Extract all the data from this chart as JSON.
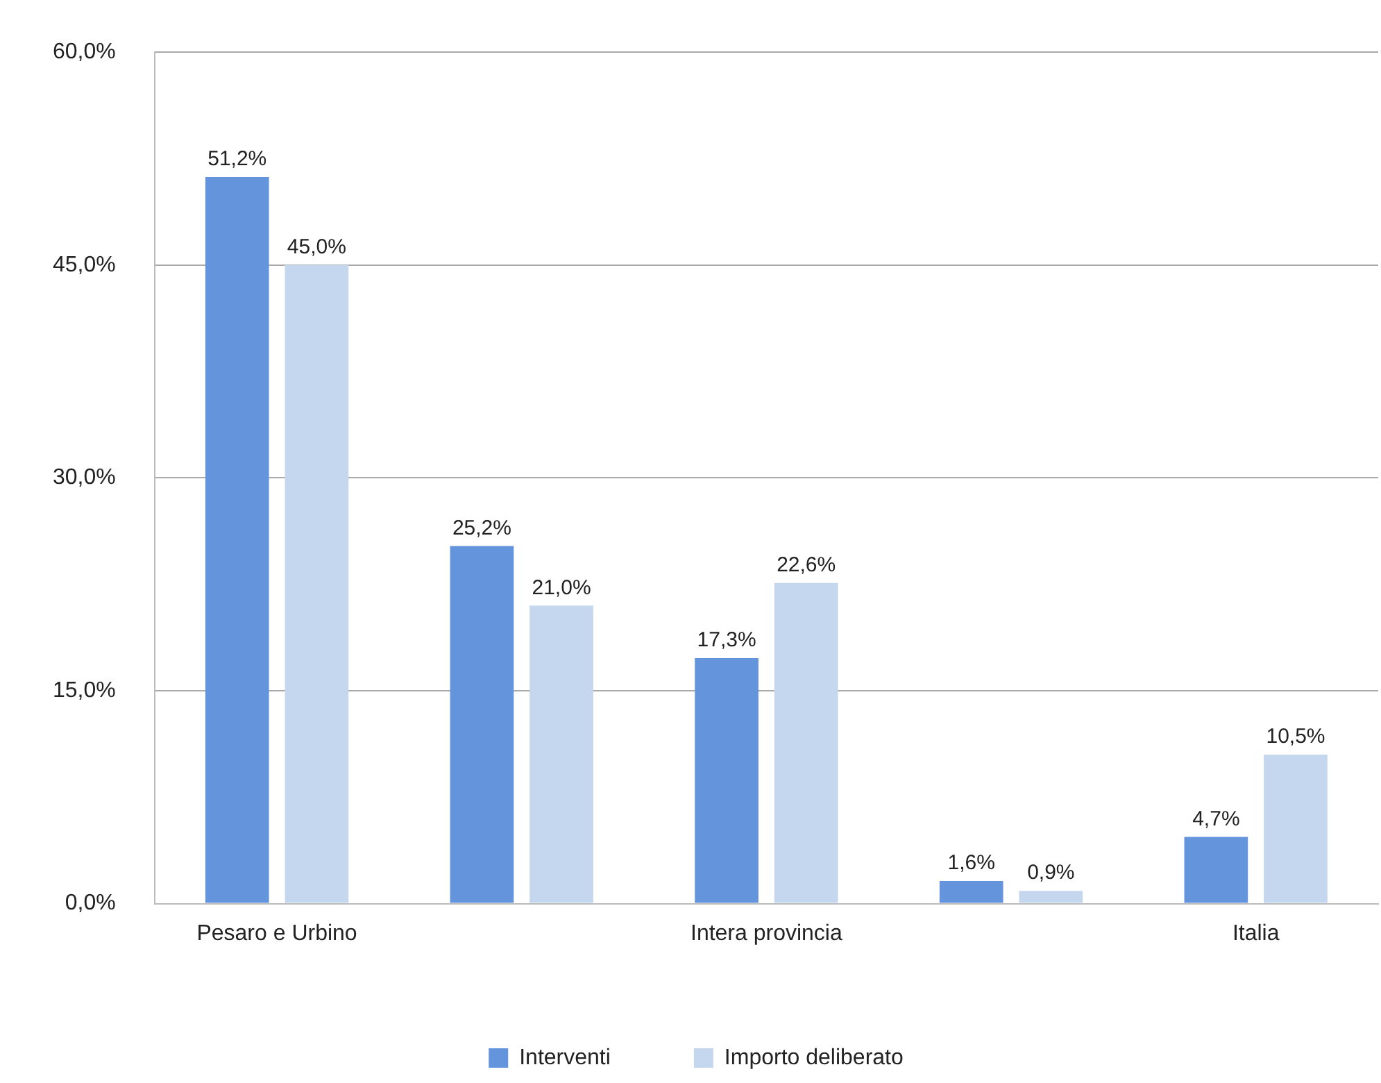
{
  "chart_data": {
    "type": "bar",
    "categories": [
      "Pesaro e Urbino",
      null,
      "Intera provincia",
      null,
      "Italia"
    ],
    "series": [
      {
        "name": "Interventi",
        "color": "#6495dc",
        "values": [
          51.2,
          25.2,
          17.3,
          1.6,
          4.7
        ],
        "value_labels": [
          "51,2%",
          "25,2%",
          "17,3%",
          "1,6%",
          "4,7%"
        ]
      },
      {
        "name": "Importo deliberato",
        "color": "#c5d7ee",
        "values": [
          45.0,
          21.0,
          22.6,
          0.9,
          10.5
        ],
        "value_labels": [
          "45,0%",
          "21,0%",
          "22,6%",
          "0,9%",
          "10,5%"
        ]
      }
    ],
    "ylim": [
      0,
      60
    ],
    "yticks": [
      {
        "value": 0,
        "label": "0,0%"
      },
      {
        "value": 15,
        "label": "15,0%"
      },
      {
        "value": 30,
        "label": "30,0%"
      },
      {
        "value": 45,
        "label": "45,0%"
      },
      {
        "value": 60,
        "label": "60,0%"
      }
    ],
    "grid": "y",
    "legend": "bottom"
  }
}
